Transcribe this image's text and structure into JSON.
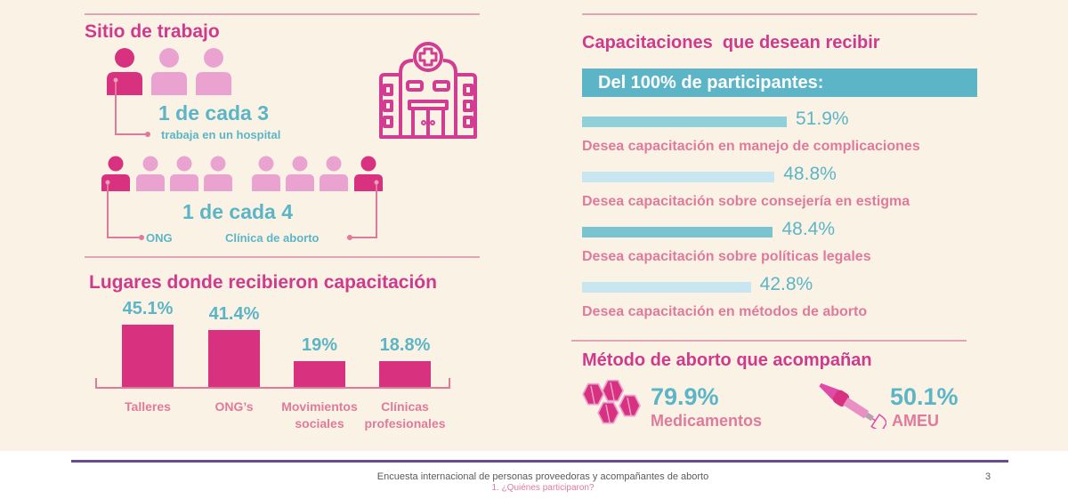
{
  "colors": {
    "magenta": "#d7317f",
    "light_pink": "#eaa3d0",
    "teal": "#5cb5c7",
    "light_teal": "#c7e6f2",
    "rose": "#e07a9c",
    "title": "#cf3a8c",
    "bg": "#faf3e5"
  },
  "sitio": {
    "title": "Sitio de trabajo",
    "hospital_ratio": "1 de cada 3",
    "hospital_label": "trabaja en un hospital",
    "ong_ratio": "1 de cada 4",
    "ong_label": "ONG",
    "clinica_label": "Clínica de aborto",
    "icons": [
      "person-icon",
      "hospital-icon"
    ]
  },
  "chart_data": [
    {
      "type": "bar",
      "title": "Lugares donde recibieron capacitación",
      "categories": [
        "Talleres",
        "ONG's",
        "Movimientos sociales",
        "Clínicas profesionales"
      ],
      "category_lines": [
        [
          "Talleres"
        ],
        [
          "ONG’s"
        ],
        [
          "Movimientos",
          "sociales"
        ],
        [
          "Clínicas",
          "profesionales"
        ]
      ],
      "values": [
        45.1,
        41.4,
        19,
        18.8
      ],
      "labels": [
        "45.1%",
        "41.4%",
        "19%",
        "18.8%"
      ],
      "xlabel": "",
      "ylabel": "",
      "ylim": [
        0,
        50
      ]
    },
    {
      "type": "bar",
      "orientation": "horizontal",
      "title": "Capacitaciones  que desean recibir",
      "subtitle": "Del 100% de participantes:",
      "categories": [
        "Desea capacitación en manejo de complicaciones",
        "Desea capacitación sobre consejería en estigma",
        "Desea capacitación sobre políticas legales",
        "Desea capacitación en métodos de aborto"
      ],
      "values": [
        51.9,
        48.8,
        48.4,
        42.8
      ],
      "labels": [
        "51.9%",
        "48.8%",
        "48.4%",
        "42.8%"
      ],
      "xlim": [
        0,
        100
      ]
    }
  ],
  "metodo": {
    "title": "Método de aborto que acompañan",
    "items": [
      {
        "value": "79.9%",
        "label": "Medicamentos",
        "icon": "pills-icon"
      },
      {
        "value": "50.1%",
        "label": "AMEU",
        "icon": "syringe-icon"
      }
    ]
  },
  "footer": {
    "title": "Encuesta internacional de personas proveedoras y acompañantes de aborto",
    "subtitle": "1. ¿Quiénes participaron?",
    "page": "3"
  }
}
